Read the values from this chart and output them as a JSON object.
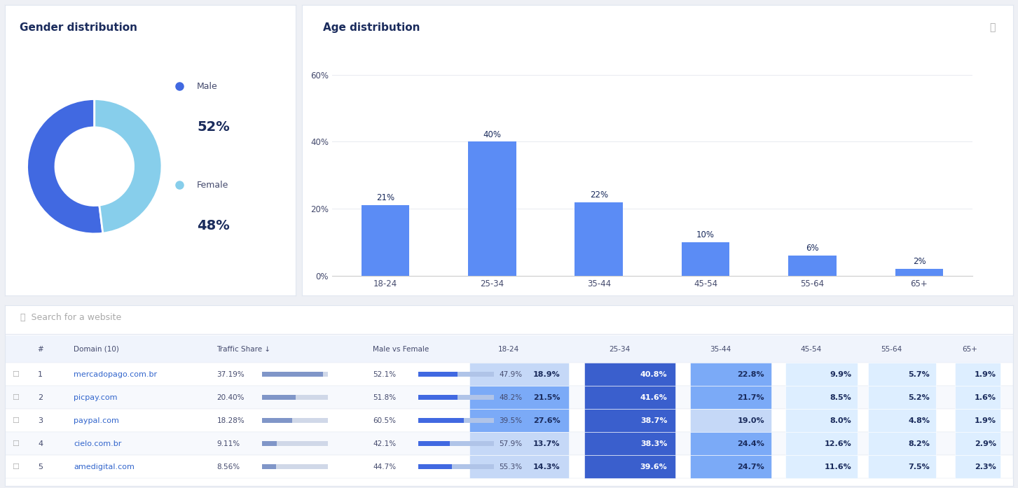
{
  "gender_title": "Gender distribution",
  "gender_male_pct": 52,
  "gender_female_pct": 48,
  "gender_male_color": "#4169e1",
  "gender_female_color": "#87ceeb",
  "age_title": "Age distribution",
  "age_categories": [
    "18-24",
    "25-34",
    "35-44",
    "45-54",
    "55-64",
    "65+"
  ],
  "age_values": [
    21,
    40,
    22,
    10,
    6,
    2
  ],
  "age_bar_color": "#5b8cf5",
  "age_yticks": [
    0,
    20,
    40,
    60
  ],
  "age_ylim": [
    0,
    65
  ],
  "search_placeholder": "Search for a website",
  "table_rows": [
    {
      "rank": 1,
      "domain": "mercadopago.com.br",
      "traffic": "37.19%",
      "male": 52.1,
      "female": 47.9,
      "age": [
        18.9,
        40.8,
        22.8,
        9.9,
        5.7,
        1.9
      ]
    },
    {
      "rank": 2,
      "domain": "picpay.com",
      "traffic": "20.40%",
      "male": 51.8,
      "female": 48.2,
      "age": [
        21.5,
        41.6,
        21.7,
        8.5,
        5.2,
        1.6
      ]
    },
    {
      "rank": 3,
      "domain": "paypal.com",
      "traffic": "18.28%",
      "male": 60.5,
      "female": 39.5,
      "age": [
        27.6,
        38.7,
        19.0,
        8.0,
        4.8,
        1.9
      ]
    },
    {
      "rank": 4,
      "domain": "cielo.com.br",
      "traffic": "9.11%",
      "male": 42.1,
      "female": 57.9,
      "age": [
        13.7,
        38.3,
        24.4,
        12.6,
        8.2,
        2.9
      ]
    },
    {
      "rank": 5,
      "domain": "amedigital.com",
      "traffic": "8.56%",
      "male": 44.7,
      "female": 55.3,
      "age": [
        14.3,
        39.6,
        24.7,
        11.6,
        7.5,
        2.3
      ]
    }
  ],
  "header_bg": "#f0f4fc",
  "border_color": "#e0e6f0",
  "text_dark": "#1a2b5c",
  "text_medium": "#444a6d",
  "text_light": "#888888",
  "fig_bg": "#eef0f5",
  "panel_bg": "#ffffff"
}
